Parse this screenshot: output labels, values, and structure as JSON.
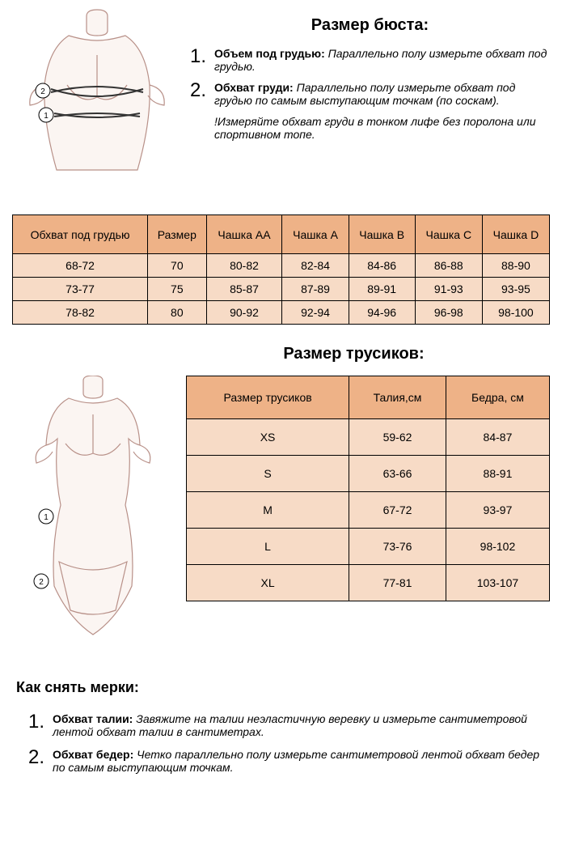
{
  "colors": {
    "table_header_bg": "#eeb287",
    "table_cell_bg": "#f7dbc6",
    "table_border": "#000000",
    "measure_line": "#d82222",
    "mannequin_stroke": "#b89088",
    "mannequin_fill": "#fbf5f2",
    "text": "#000000"
  },
  "bust": {
    "title": "Размер бюста:",
    "instructions": [
      {
        "num": "1.",
        "label": "Объем под грудью:",
        "text": "Параллельно полу измерьте обхват под грудью."
      },
      {
        "num": "2.",
        "label": "Обхват груди:",
        "text": "Параллельно полу измерьте обхват под грудью по самым выступающим точкам (по соскам)."
      }
    ],
    "note": "!Измеряйте обхват груди в тонком лифе без поролона или спортивном топе.",
    "table": {
      "columns": [
        "Обхват под грудью",
        "Размер",
        "Чашка AA",
        "Чашка A",
        "Чашка B",
        "Чашка C",
        "Чашка D"
      ],
      "rows": [
        [
          "68-72",
          "70",
          "80-82",
          "82-84",
          "84-86",
          "86-88",
          "88-90"
        ],
        [
          "73-77",
          "75",
          "85-87",
          "87-89",
          "89-91",
          "91-93",
          "93-95"
        ],
        [
          "78-82",
          "80",
          "90-92",
          "92-94",
          "94-96",
          "96-98",
          "98-100"
        ]
      ]
    }
  },
  "panties": {
    "title": "Размер трусиков:",
    "table": {
      "columns": [
        "Размер трусиков",
        "Талия,см",
        "Бедра, см"
      ],
      "rows": [
        [
          "XS",
          "59-62",
          "84-87"
        ],
        [
          "S",
          "63-66",
          "88-91"
        ],
        [
          "M",
          "67-72",
          "93-97"
        ],
        [
          "L",
          "73-76",
          "98-102"
        ],
        [
          "XL",
          "77-81",
          "103-107"
        ]
      ]
    }
  },
  "howto": {
    "title": "Как снять мерки:",
    "items": [
      {
        "num": "1.",
        "label": "Обхват талии:",
        "text": "Завяжите на талии неэластичную веревку и измерьте сантиметровой лентой обхват талии в сантиметрах."
      },
      {
        "num": "2.",
        "label": "Обхват бедер:",
        "text": "Четко параллельно полу измерьте сантиметровой лентой обхват бедер по самым выступающим точкам."
      }
    ]
  },
  "markers": {
    "m1": "1",
    "m2": "2"
  }
}
